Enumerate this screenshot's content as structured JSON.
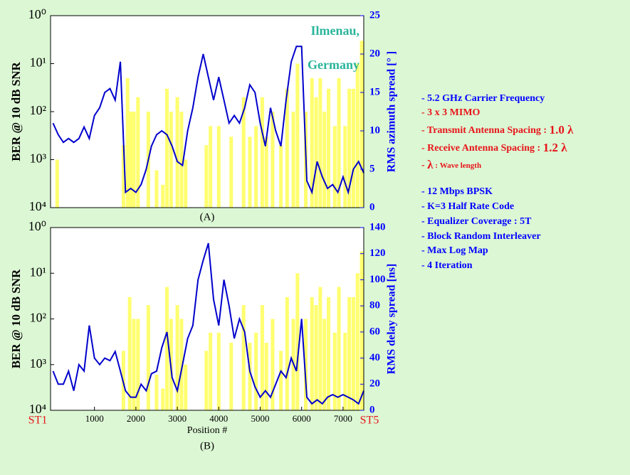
{
  "chart_data": [
    {
      "type": "combo",
      "label": "(A)",
      "ylabel": "BER @ 10 dB SNR",
      "y2label": "RMS azimuth spread [° ]",
      "annotation": [
        "Ilmenau,",
        "Germany"
      ],
      "annotation_color": "#2bb59c",
      "log_y": true,
      "xlim": [
        -60,
        7500
      ],
      "ylim": [
        0.0001,
        1
      ],
      "yticks": [
        {
          "value": 1,
          "label": "10⁰"
        },
        {
          "value": 0.1,
          "label": "10¹"
        },
        {
          "value": 0.01,
          "label": "10²"
        },
        {
          "value": 0.001,
          "label": "10³"
        },
        {
          "value": 0.0001,
          "label": "10⁴"
        }
      ],
      "y2lim": [
        0,
        25
      ],
      "y2ticks": [
        0,
        5,
        10,
        15,
        20,
        25
      ],
      "series": [
        {
          "type": "bar",
          "color": "#ffff70",
          "x": [
            100,
            1700,
            1800,
            1875,
            1950,
            2050,
            2300,
            2500,
            2650,
            2750,
            2850,
            3000,
            3100,
            3200,
            3700,
            3800,
            4000,
            4300,
            4600,
            4750,
            4900,
            5050,
            5150,
            5300,
            5500,
            5650,
            5800,
            5900,
            6100,
            6250,
            6350,
            6450,
            6550,
            6650,
            6800,
            6900,
            7050,
            7150,
            7250,
            7350,
            7450
          ],
          "values": [
            0.001,
            0.002,
            0.05,
            0.01,
            0.01,
            0.02,
            0.01,
            0.0006,
            0.0003,
            0.03,
            0.01,
            0.02,
            0.01,
            0.001,
            0.002,
            0.005,
            0.005,
            0.003,
            0.02,
            0.003,
            0.005,
            0.02,
            0.003,
            0.01,
            0.002,
            0.03,
            0.01,
            0.1,
            0.01,
            0.05,
            0.02,
            0.05,
            0.01,
            0.03,
            0.005,
            0.05,
            0.005,
            0.03,
            0.03,
            0.1,
            0.3
          ]
        },
        {
          "type": "line",
          "axis": "y2",
          "color": "#0000cc",
          "x": [
            0,
            125,
            250,
            375,
            500,
            625,
            750,
            875,
            1000,
            1125,
            1250,
            1375,
            1500,
            1625,
            1750,
            1875,
            2000,
            2125,
            2250,
            2375,
            2500,
            2625,
            2750,
            2875,
            3000,
            3125,
            3250,
            3375,
            3500,
            3625,
            3750,
            3875,
            4000,
            4125,
            4250,
            4375,
            4500,
            4625,
            4750,
            4875,
            5000,
            5125,
            5250,
            5375,
            5500,
            5625,
            5750,
            5875,
            6000,
            6125,
            6250,
            6375,
            6500,
            6625,
            6750,
            6875,
            7000,
            7125,
            7250,
            7375,
            7500
          ],
          "values": [
            11,
            9.5,
            8.5,
            9,
            8.5,
            9,
            10.5,
            9,
            12,
            13,
            15,
            15.5,
            14,
            19,
            2,
            2.5,
            2,
            3,
            5,
            8,
            9.5,
            10,
            9.5,
            8,
            6,
            5.5,
            10,
            13,
            17,
            20,
            17,
            14,
            17,
            14,
            11,
            12,
            11,
            13,
            16,
            15,
            11,
            8,
            13,
            10,
            8,
            14,
            19,
            21,
            21,
            3.5,
            2,
            6,
            4,
            2.5,
            3,
            2,
            4,
            2,
            5,
            6,
            4.5
          ]
        }
      ]
    },
    {
      "type": "combo",
      "label": "(B)",
      "ylabel": "BER @ 10 dB SNR",
      "y2label": "RMS delay spread [ns]",
      "xlabel": "Position #",
      "start_label": "ST1",
      "end_label": "ST5",
      "log_y": true,
      "xlim": [
        -60,
        7500
      ],
      "xticks": [
        1000,
        2000,
        3000,
        4000,
        5000,
        6000,
        7000
      ],
      "ylim": [
        0.0001,
        1
      ],
      "yticks": [
        {
          "value": 1,
          "label": "10⁰"
        },
        {
          "value": 0.1,
          "label": "10¹"
        },
        {
          "value": 0.01,
          "label": "10²"
        },
        {
          "value": 0.001,
          "label": "10³"
        },
        {
          "value": 0.0001,
          "label": "10⁴"
        }
      ],
      "y2lim": [
        0,
        140
      ],
      "y2ticks": [
        0,
        20,
        40,
        60,
        80,
        100,
        120,
        140
      ],
      "series": [
        {
          "type": "bar",
          "color": "#ffff70",
          "x": [
            1700,
            1850,
            1950,
            2050,
            2300,
            2500,
            2650,
            2750,
            2850,
            3000,
            3100,
            3200,
            3700,
            3800,
            4000,
            4300,
            4600,
            4750,
            4900,
            5050,
            5150,
            5300,
            5500,
            5650,
            5800,
            5900,
            6100,
            6250,
            6350,
            6450,
            6550,
            6650,
            6800,
            6900,
            7050,
            7150,
            7250,
            7350,
            7450
          ],
          "values": [
            0.002,
            0.03,
            0.01,
            0.01,
            0.02,
            0.0006,
            0.0003,
            0.05,
            0.01,
            0.02,
            0.01,
            0.001,
            0.002,
            0.005,
            0.005,
            0.003,
            0.02,
            0.003,
            0.005,
            0.02,
            0.003,
            0.01,
            0.002,
            0.03,
            0.01,
            0.1,
            0.01,
            0.03,
            0.02,
            0.05,
            0.01,
            0.03,
            0.005,
            0.05,
            0.005,
            0.03,
            0.03,
            0.1,
            0.3
          ]
        },
        {
          "type": "line",
          "axis": "y2",
          "color": "#0000cc",
          "x": [
            0,
            125,
            250,
            375,
            500,
            625,
            750,
            875,
            1000,
            1125,
            1250,
            1375,
            1500,
            1625,
            1750,
            1875,
            2000,
            2125,
            2250,
            2375,
            2500,
            2625,
            2750,
            2875,
            3000,
            3125,
            3250,
            3375,
            3500,
            3625,
            3750,
            3875,
            4000,
            4125,
            4250,
            4375,
            4500,
            4625,
            4750,
            4875,
            5000,
            5125,
            5250,
            5375,
            5500,
            5625,
            5750,
            5875,
            6000,
            6125,
            6250,
            6375,
            6500,
            6625,
            6750,
            6875,
            7000,
            7125,
            7250,
            7375,
            7500
          ],
          "values": [
            30,
            20,
            20,
            30,
            15,
            35,
            30,
            65,
            40,
            35,
            40,
            38,
            45,
            30,
            15,
            10,
            10,
            20,
            15,
            28,
            30,
            48,
            60,
            25,
            15,
            35,
            55,
            65,
            100,
            115,
            128,
            85,
            65,
            100,
            80,
            55,
            70,
            60,
            30,
            18,
            10,
            15,
            10,
            20,
            30,
            25,
            40,
            30,
            70,
            10,
            5,
            8,
            5,
            10,
            12,
            10,
            12,
            10,
            8,
            5,
            15
          ]
        }
      ]
    }
  ],
  "notes": [
    {
      "parts": [
        {
          "text": "- 5.2 GHz Carrier Frequency"
        }
      ]
    },
    {
      "parts": [
        {
          "text": "- 3 x 3 MIMO"
        }
      ]
    },
    {
      "parts": [
        {
          "text": "- Transmit Antenna Spacing : "
        },
        {
          "text": "1.0 λ"
        }
      ]
    },
    {
      "parts": [
        {
          "text": "- Receive Antenna Spacing : "
        },
        {
          "text": "1.2 λ"
        }
      ]
    },
    {
      "parts": [
        {
          "text": "- "
        },
        {
          "text": "λ"
        },
        {
          "text": " : Wave length"
        }
      ]
    },
    {
      "parts": [
        {
          "text": "- 12 Mbps BPSK"
        }
      ]
    },
    {
      "parts": [
        {
          "text": "- K=3 Half Rate Code"
        }
      ]
    },
    {
      "parts": [
        {
          "text": "- Equalizer Coverage : 5T"
        }
      ]
    },
    {
      "parts": [
        {
          "text": "- Block Random Interleaver"
        }
      ]
    },
    {
      "parts": [
        {
          "text": "- Max Log Map"
        }
      ]
    },
    {
      "parts": [
        {
          "text": "- 4 Iteration"
        }
      ]
    }
  ]
}
